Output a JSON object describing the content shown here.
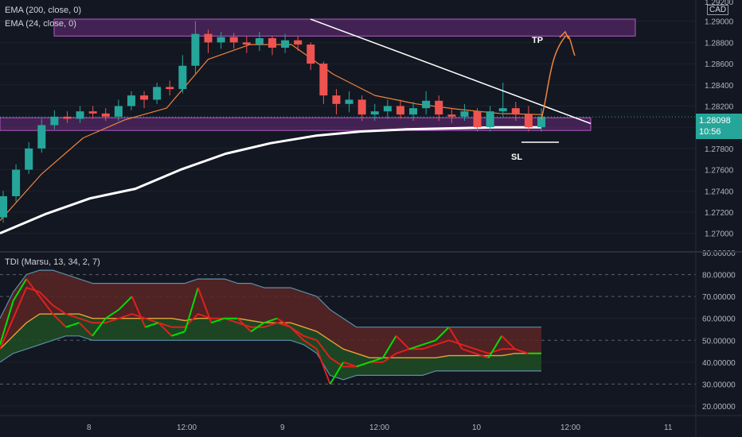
{
  "legends": {
    "ema200": "EMA (200, close, 0)",
    "ema24": "EMA (24, close, 0)",
    "tdi": "TDI (Marsu, 13, 34, 2, 7)"
  },
  "currency": "CAD",
  "top_cut_label": "1.29200",
  "price_badge": {
    "value": "1.28098",
    "countdown": "10:56",
    "color": "#26a69a"
  },
  "annotations": {
    "tp": "TP",
    "sl": "SL"
  },
  "colors": {
    "bg": "#131722",
    "up": "#26a69a",
    "down": "#ef5350",
    "ema200": "#ffffff",
    "ema24": "#f0843c",
    "zone_fill": "#6a2c7a",
    "zone_stroke": "#b35ac7",
    "trend": "#ffffff",
    "arrow": "#f0843c",
    "tdi_green": "#00e000",
    "tdi_red": "#e0201c",
    "tdi_orange": "#e8a03a",
    "tdi_band": "#5b8fa8"
  },
  "chart_data": [
    {
      "type": "candlestick",
      "title": "",
      "ylabel": "",
      "ylim": [
        1.2684,
        1.292
      ],
      "y_ticks": [
        "1.27000",
        "1.27200",
        "1.27400",
        "1.27600",
        "1.27800",
        "1.28000",
        "1.28200",
        "1.28400",
        "1.28600",
        "1.28800",
        "1.29000"
      ],
      "x_ticks": [
        "8",
        "12:00",
        "9",
        "12:00",
        "10",
        "12:00",
        "11"
      ],
      "last_price": 1.28098,
      "zones": [
        {
          "name": "resistance",
          "from": 1.2886,
          "to": 1.2902
        },
        {
          "name": "support",
          "from": 1.2797,
          "to": 1.2809
        }
      ],
      "trendline": [
        [
          1.2902
        ],
        [
          1.2808
        ]
      ],
      "series": [
        {
          "name": "EMA (200, close, 0)",
          "values": [
            1.27,
            1.2718,
            1.2733,
            1.2742,
            1.276,
            1.2775,
            1.2785,
            1.2792,
            1.2796,
            1.2798,
            1.2799,
            1.28,
            1.28
          ]
        },
        {
          "name": "EMA (24, close, 0)",
          "values": [
            1.2712,
            1.2756,
            1.279,
            1.2807,
            1.2818,
            1.2864,
            1.2878,
            1.2878,
            1.285,
            1.283,
            1.2822,
            1.2817,
            1.2813,
            1.2812
          ]
        }
      ],
      "candles": {
        "open": [
          1.2715,
          1.2735,
          1.276,
          1.278,
          1.2802,
          1.281,
          1.2808,
          1.2815,
          1.2813,
          1.281,
          1.282,
          1.283,
          1.2826,
          1.2838,
          1.2836,
          1.2858,
          1.2888,
          1.288,
          1.2885,
          1.288,
          1.2878,
          1.2884,
          1.2875,
          1.2882,
          1.2878,
          1.286,
          1.283,
          1.2822,
          1.2826,
          1.2812,
          1.2815,
          1.282,
          1.2812,
          1.2818,
          1.2825,
          1.2812,
          1.281,
          1.2815,
          1.28,
          1.2815,
          1.2818,
          1.2812,
          1.28
        ],
        "close": [
          1.2735,
          1.276,
          1.278,
          1.2802,
          1.281,
          1.2808,
          1.2815,
          1.2813,
          1.281,
          1.282,
          1.283,
          1.2826,
          1.2838,
          1.2836,
          1.2858,
          1.2888,
          1.288,
          1.2885,
          1.288,
          1.2878,
          1.2884,
          1.2875,
          1.2882,
          1.2878,
          1.286,
          1.283,
          1.2822,
          1.2826,
          1.2812,
          1.2815,
          1.282,
          1.2812,
          1.2818,
          1.2825,
          1.2812,
          1.281,
          1.2815,
          1.28,
          1.2815,
          1.2818,
          1.2812,
          1.28,
          1.281
        ],
        "high": [
          1.274,
          1.2765,
          1.2786,
          1.2808,
          1.2816,
          1.2815,
          1.282,
          1.282,
          1.2818,
          1.2826,
          1.2834,
          1.2834,
          1.2842,
          1.2844,
          1.2868,
          1.29,
          1.2892,
          1.289,
          1.2889,
          1.2886,
          1.289,
          1.2886,
          1.2888,
          1.2886,
          1.288,
          1.2862,
          1.2836,
          1.2834,
          1.283,
          1.2822,
          1.2826,
          1.2826,
          1.2824,
          1.2834,
          1.283,
          1.2818,
          1.2822,
          1.2818,
          1.282,
          1.2842,
          1.2824,
          1.282,
          1.2818
        ],
        "low": [
          1.271,
          1.273,
          1.2756,
          1.2776,
          1.2798,
          1.2804,
          1.2804,
          1.2808,
          1.2806,
          1.2806,
          1.2816,
          1.2818,
          1.2822,
          1.283,
          1.2832,
          1.285,
          1.287,
          1.2874,
          1.2874,
          1.287,
          1.2872,
          1.2868,
          1.287,
          1.2872,
          1.2854,
          1.2822,
          1.2812,
          1.2814,
          1.2806,
          1.2806,
          1.2808,
          1.2808,
          1.2806,
          1.2812,
          1.2806,
          1.2804,
          1.2806,
          1.2796,
          1.2796,
          1.281,
          1.2806,
          1.2796,
          1.2796
        ]
      }
    },
    {
      "type": "line",
      "title": "TDI (Marsu, 13, 34, 2, 7)",
      "ylim": [
        16,
        90
      ],
      "y_ticks": [
        "20.00000",
        "30.00000",
        "40.00000",
        "50.00000",
        "60.00000",
        "70.00000",
        "80.00000",
        "90.00000"
      ],
      "levels": [
        32,
        50,
        68
      ],
      "series": [
        {
          "name": "RSI price line",
          "values": [
            48,
            68,
            78,
            70,
            62,
            56,
            58,
            52,
            60,
            64,
            70,
            56,
            58,
            52,
            54,
            74,
            58,
            60,
            60,
            54,
            58,
            60,
            56,
            50,
            46,
            30,
            40,
            38,
            40,
            42,
            52,
            46,
            48,
            50,
            56,
            46,
            44,
            42,
            52,
            46,
            44,
            44
          ]
        },
        {
          "name": "signal line",
          "values": [
            46,
            60,
            74,
            72,
            66,
            62,
            60,
            58,
            58,
            60,
            62,
            60,
            58,
            56,
            56,
            62,
            60,
            60,
            58,
            56,
            56,
            58,
            56,
            52,
            50,
            42,
            38,
            38,
            40,
            40,
            44,
            46,
            46,
            48,
            50,
            48,
            46,
            44,
            46,
            46,
            44,
            44
          ]
        },
        {
          "name": "market base line",
          "values": [
            46,
            52,
            58,
            62,
            62,
            62,
            62,
            60,
            60,
            60,
            60,
            60,
            60,
            60,
            59,
            60,
            60,
            60,
            60,
            59,
            58,
            58,
            58,
            56,
            54,
            50,
            46,
            44,
            42,
            42,
            42,
            42,
            42,
            42,
            43,
            43,
            43,
            43,
            43,
            44,
            44,
            44
          ]
        },
        {
          "name": "upper volatility band",
          "values": [
            60,
            72,
            80,
            82,
            82,
            80,
            78,
            76,
            76,
            76,
            76,
            76,
            76,
            76,
            76,
            78,
            78,
            78,
            76,
            76,
            74,
            74,
            74,
            72,
            70,
            64,
            60,
            56,
            56,
            56,
            56,
            56,
            56,
            56,
            56,
            56,
            56,
            56,
            56,
            56,
            56,
            56
          ]
        },
        {
          "name": "lower volatility band",
          "values": [
            40,
            44,
            46,
            48,
            50,
            52,
            52,
            50,
            50,
            50,
            50,
            50,
            50,
            50,
            50,
            50,
            50,
            50,
            50,
            50,
            50,
            50,
            50,
            48,
            44,
            34,
            32,
            34,
            34,
            34,
            34,
            34,
            34,
            36,
            36,
            36,
            36,
            36,
            36,
            36,
            36,
            36
          ]
        }
      ]
    }
  ]
}
